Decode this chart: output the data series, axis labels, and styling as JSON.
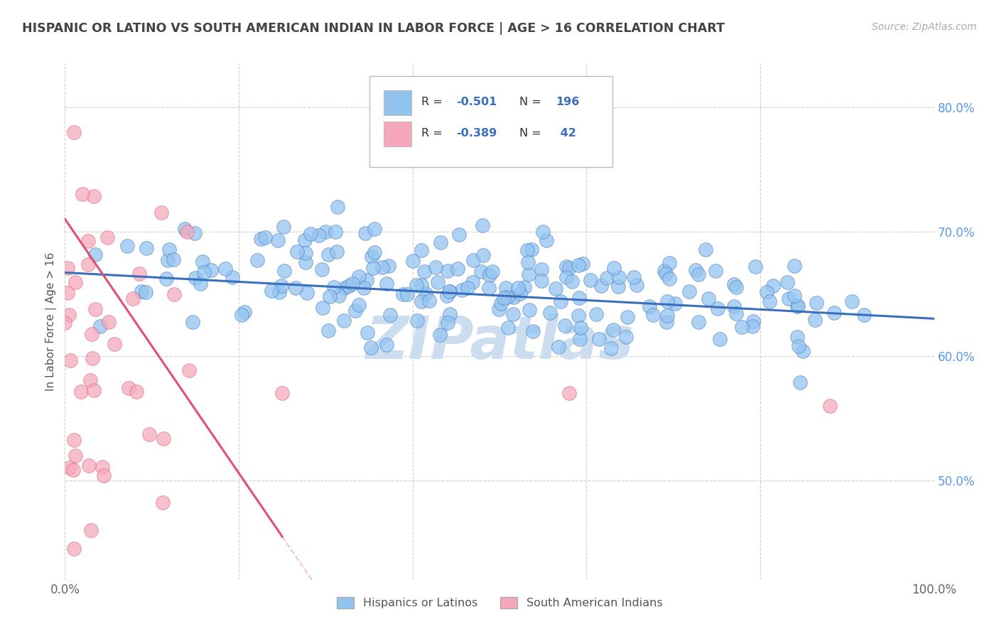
{
  "title": "HISPANIC OR LATINO VS SOUTH AMERICAN INDIAN IN LABOR FORCE | AGE > 16 CORRELATION CHART",
  "source": "Source: ZipAtlas.com",
  "ylabel": "In Labor Force | Age > 16",
  "xlim": [
    0.0,
    1.0
  ],
  "ylim": [
    0.42,
    0.835
  ],
  "yticks": [
    0.5,
    0.6,
    0.7,
    0.8
  ],
  "ytick_labels": [
    "50.0%",
    "60.0%",
    "70.0%",
    "80.0%"
  ],
  "blue_R": -0.501,
  "blue_N": 196,
  "pink_R": -0.389,
  "pink_N": 42,
  "blue_color": "#93c4f0",
  "pink_color": "#f5a8bc",
  "blue_line_color": "#3a6fbe",
  "pink_line_color": "#e05070",
  "background_color": "#ffffff",
  "grid_color": "#cccccc",
  "title_color": "#444444",
  "axis_color": "#5599ee",
  "legend_label_blue": "Hispanics or Latinos",
  "legend_label_pink": "South American Indians",
  "watermark": "ZIPatlas",
  "watermark_color": "#ccddf0"
}
